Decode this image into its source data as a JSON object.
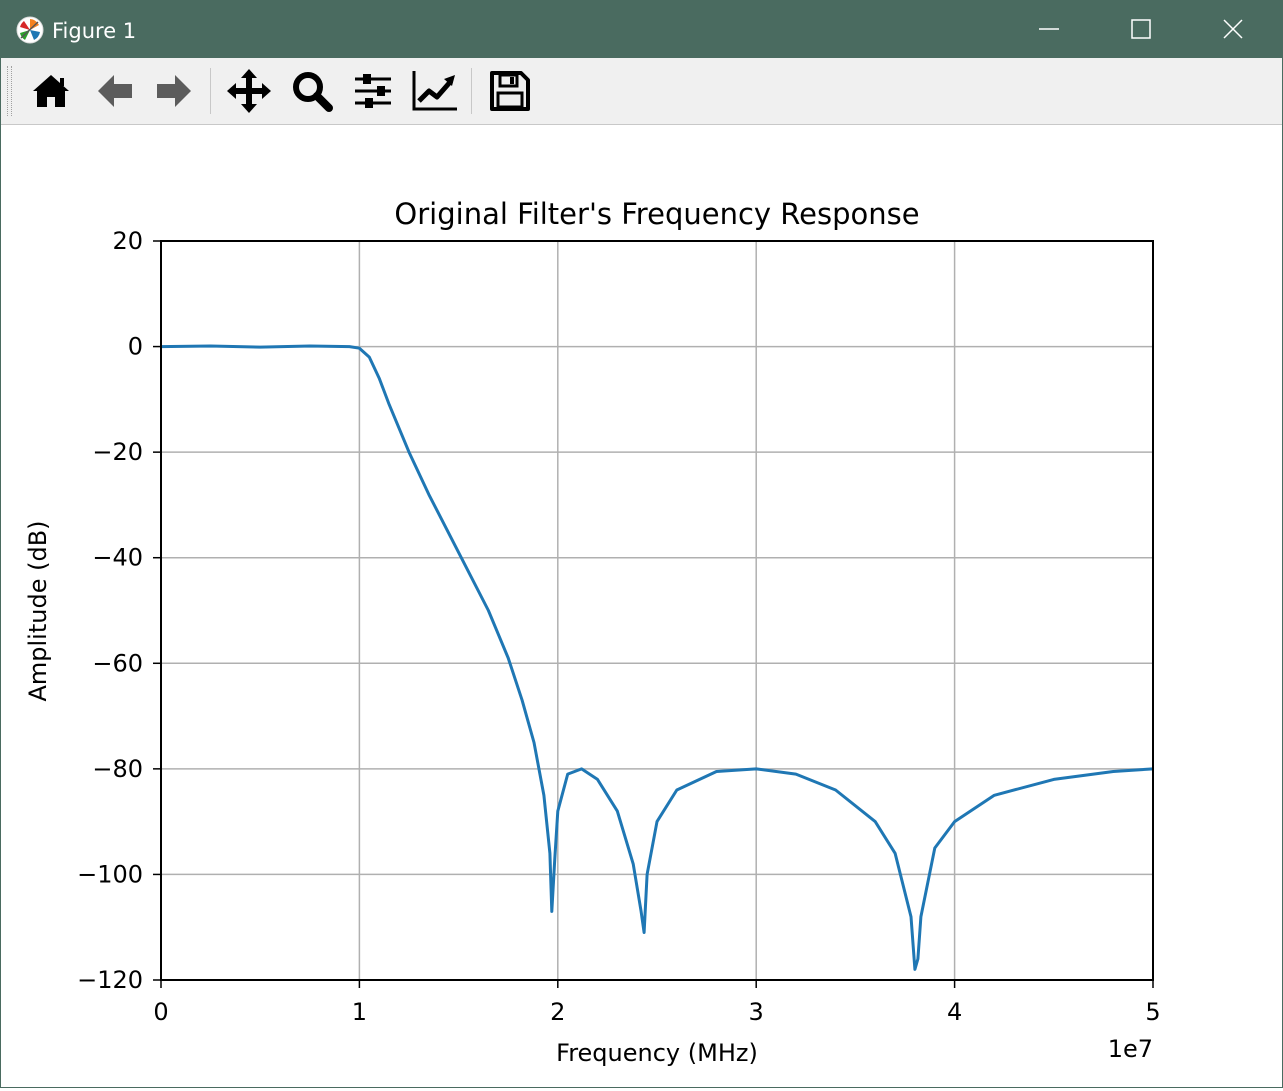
{
  "window": {
    "title": "Figure 1",
    "icon": "matplotlib-icon",
    "controls": [
      "minimize-icon",
      "maximize-icon",
      "close-icon"
    ]
  },
  "toolbar": {
    "items": [
      "home-icon",
      "back-arrow-icon",
      "forward-arrow-icon",
      "pan-icon",
      "zoom-icon",
      "configure-subplots-icon",
      "edit-axis-icon",
      "save-icon"
    ]
  },
  "colors": {
    "titlebar": "#4a6b60",
    "line": "#1f77b4",
    "grid": "#b0b0b0"
  },
  "chart_data": {
    "type": "line",
    "title": "Original Filter's Frequency Response",
    "xlabel": "Frequency (MHz)",
    "ylabel": "Amplitude (dB)",
    "x_offset_label": "1e7",
    "xlim": [
      0,
      5
    ],
    "ylim": [
      -120,
      20
    ],
    "xticks": [
      0,
      1,
      2,
      3,
      4,
      5
    ],
    "xtick_labels": [
      "0",
      "1",
      "2",
      "3",
      "4",
      "5"
    ],
    "yticks": [
      20,
      0,
      -20,
      -40,
      -60,
      -80,
      -100,
      -120
    ],
    "ytick_labels": [
      "20",
      "0",
      "−20",
      "−40",
      "−60",
      "−80",
      "−100",
      "−120"
    ],
    "grid": true,
    "series": [
      {
        "color": "#1f77b4",
        "x": [
          0,
          0.25,
          0.5,
          0.75,
          0.95,
          1.0,
          1.05,
          1.1,
          1.15,
          1.25,
          1.35,
          1.5,
          1.65,
          1.75,
          1.82,
          1.88,
          1.93,
          1.96,
          1.97,
          1.985,
          2.0,
          2.05,
          2.12,
          2.2,
          2.3,
          2.38,
          2.42,
          2.435,
          2.45,
          2.5,
          2.6,
          2.8,
          3.0,
          3.2,
          3.4,
          3.6,
          3.7,
          3.78,
          3.8,
          3.815,
          3.83,
          3.9,
          4.0,
          4.2,
          4.5,
          4.8,
          5.0
        ],
        "y": [
          0,
          0.1,
          -0.1,
          0.1,
          0,
          -0.3,
          -2,
          -6,
          -11,
          -20,
          -28,
          -39,
          -50,
          -59,
          -67,
          -75,
          -85,
          -96,
          -107,
          -97,
          -88,
          -81,
          -80,
          -82,
          -88,
          -98,
          -107,
          -111,
          -100,
          -90,
          -84,
          -80.5,
          -80,
          -81,
          -84,
          -90,
          -96,
          -108,
          -118,
          -116,
          -108,
          -95,
          -90,
          -85,
          -82,
          -80.5,
          -80
        ]
      }
    ]
  }
}
